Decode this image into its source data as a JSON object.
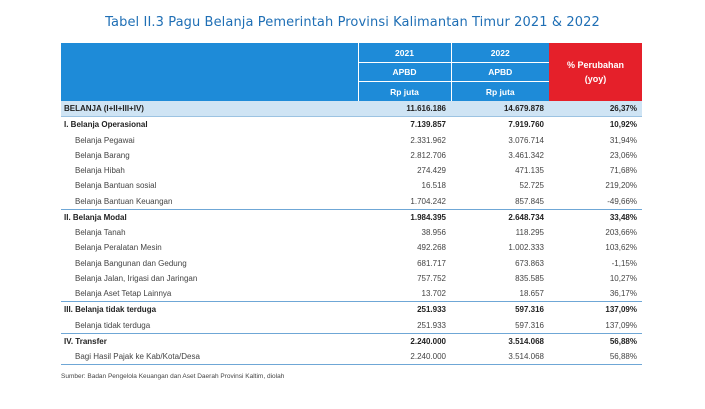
{
  "title": "Tabel II.3 Pagu Belanja Pemerintah Provinsi Kalimantan Timur 2021 & 2022",
  "header": {
    "year1": "2021",
    "year2": "2022",
    "sub1": "APBD",
    "sub2": "APBD",
    "unit1": "Rp juta",
    "unit2": "Rp juta",
    "change_line1": "% Perubahan",
    "change_line2": "(yoy)"
  },
  "rows": [
    {
      "level": 0,
      "label": "BELANJA (I+II+III+IV)",
      "v2021": "11.616.186",
      "v2022": "14.679.878",
      "change": "26,37%"
    },
    {
      "level": 1,
      "label": "I. Belanja Operasional",
      "v2021": "7.139.857",
      "v2022": "7.919.760",
      "change": "10,92%"
    },
    {
      "level": 2,
      "label": "Belanja Pegawai",
      "v2021": "2.331.962",
      "v2022": "3.076.714",
      "change": "31,94%"
    },
    {
      "level": 2,
      "label": "Belanja Barang",
      "v2021": "2.812.706",
      "v2022": "3.461.342",
      "change": "23,06%"
    },
    {
      "level": 2,
      "label": "Belanja Hibah",
      "v2021": "274.429",
      "v2022": "471.135",
      "change": "71,68%"
    },
    {
      "level": 2,
      "label": "Belanja Bantuan sosial",
      "v2021": "16.518",
      "v2022": "52.725",
      "change": "219,20%"
    },
    {
      "level": 2,
      "label": "Belanja Bantuan Keuangan",
      "v2021": "1.704.242",
      "v2022": "857.845",
      "change": "-49,66%"
    },
    {
      "level": 1,
      "label": "II. Belanja Modal",
      "v2021": "1.984.395",
      "v2022": "2.648.734",
      "change": "33,48%"
    },
    {
      "level": 2,
      "label": "Belanja Tanah",
      "v2021": "38.956",
      "v2022": "118.295",
      "change": "203,66%"
    },
    {
      "level": 2,
      "label": "Belanja Peralatan Mesin",
      "v2021": "492.268",
      "v2022": "1.002.333",
      "change": "103,62%"
    },
    {
      "level": 2,
      "label": "Belanja Bangunan dan Gedung",
      "v2021": "681.717",
      "v2022": "673.863",
      "change": "-1,15%"
    },
    {
      "level": 2,
      "label": "Belanja Jalan, Irigasi dan Jaringan",
      "v2021": "757.752",
      "v2022": "835.585",
      "change": "10,27%"
    },
    {
      "level": 2,
      "label": "Belanja Aset Tetap Lainnya",
      "v2021": "13.702",
      "v2022": "18.657",
      "change": "36,17%"
    },
    {
      "level": 1,
      "label": "III. Belanja tidak terduga",
      "v2021": "251.933",
      "v2022": "597.316",
      "change": "137,09%"
    },
    {
      "level": 2,
      "label": "Belanja tidak terduga",
      "v2021": "251.933",
      "v2022": "597.316",
      "change": "137,09%"
    },
    {
      "level": 1,
      "label": "IV. Transfer",
      "v2021": "2.240.000",
      "v2022": "3.514.068",
      "change": "56,88%"
    },
    {
      "level": 2,
      "label": "Bagi Hasil Pajak ke Kab/Kota/Desa",
      "v2021": "2.240.000",
      "v2022": "3.514.068",
      "change": "56,88%"
    }
  ],
  "source": "Sumber: Badan Pengelola Keuangan dan Aset Daerah Provinsi Kaltim, diolah"
}
